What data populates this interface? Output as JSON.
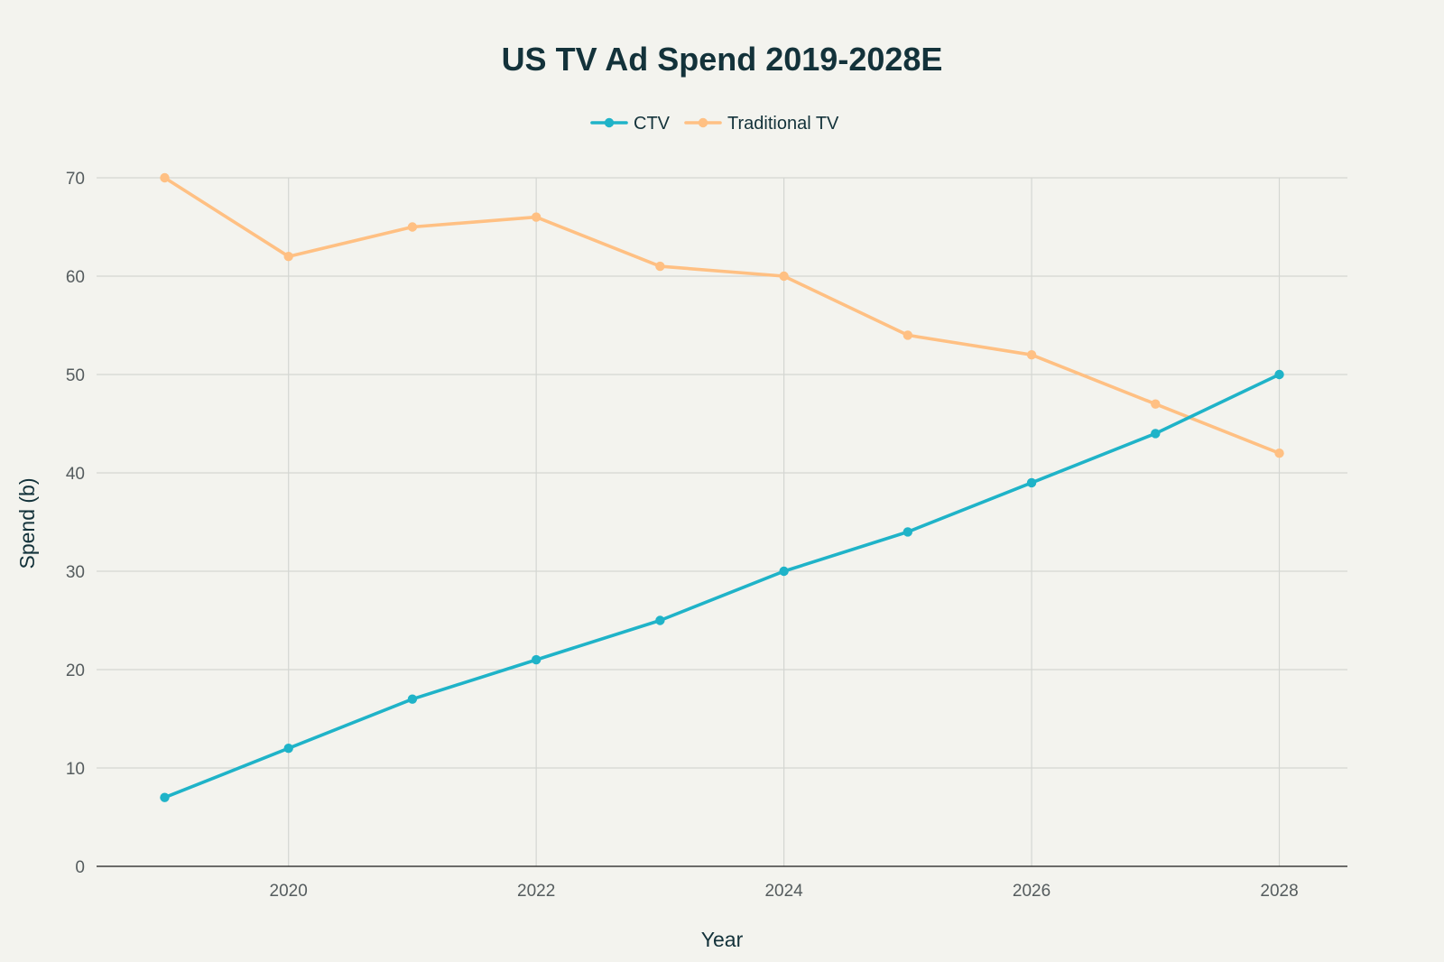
{
  "colors": {
    "background": "#f3f3ee",
    "ctv": "#1fb3c8",
    "traditional_tv": "#ffc083",
    "grid": "#d4d6d2",
    "axis": "#1a1a1a"
  },
  "chart_data": {
    "type": "line",
    "title": "US TV Ad Spend 2019-2028E",
    "xlabel": "Year",
    "ylabel": "Spend (b)",
    "x": [
      2019,
      2020,
      2021,
      2022,
      2023,
      2024,
      2025,
      2026,
      2027,
      2028
    ],
    "xlim": [
      2018.45,
      2028.55
    ],
    "ylim": [
      0,
      70
    ],
    "x_ticks": [
      2020,
      2022,
      2024,
      2026,
      2028
    ],
    "y_ticks": [
      0,
      10,
      20,
      30,
      40,
      50,
      60,
      70
    ],
    "grid": true,
    "legend_position": "top-center",
    "series": [
      {
        "name": "CTV",
        "color": "#1fb3c8",
        "values": [
          7,
          12,
          17,
          21,
          25,
          30,
          34,
          39,
          44,
          50
        ]
      },
      {
        "name": "Traditional TV",
        "color": "#ffc083",
        "values": [
          70,
          62,
          65,
          66,
          61,
          60,
          54,
          52,
          47,
          42
        ]
      }
    ]
  }
}
